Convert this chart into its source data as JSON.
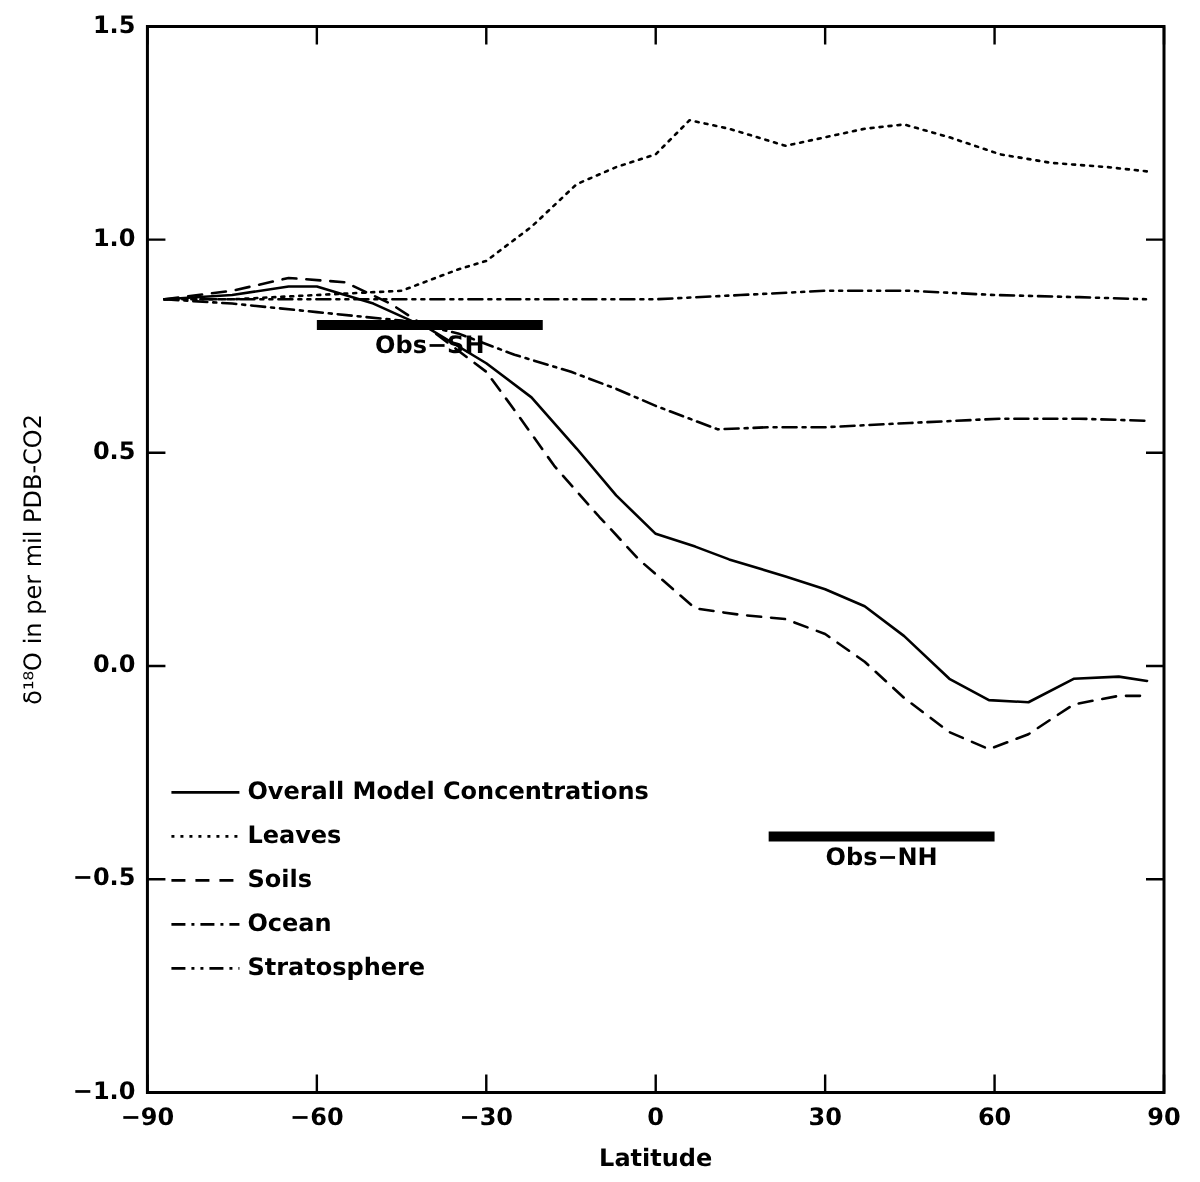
{
  "chart_data": {
    "type": "line",
    "xlabel": "Latitude",
    "ylabel": "δ¹⁸O in per mil PDB-CO2",
    "xlim": [
      -90,
      90
    ],
    "xticks": [
      {
        "value": -90,
        "label": "−90"
      },
      {
        "value": -60,
        "label": "−60"
      },
      {
        "value": -30,
        "label": "−30"
      },
      0,
      30,
      60,
      90
    ],
    "ylim": [
      -1.0,
      1.5
    ],
    "yticks": [
      {
        "value": -1,
        "label": "−1.0"
      },
      {
        "value": -0.5,
        "label": "−0.5"
      },
      {
        "value": 0,
        "label": "0.0"
      },
      {
        "value": 0.5,
        "label": "0.5"
      },
      {
        "value": 1,
        "label": "1.0"
      },
      {
        "value": 1.5,
        "label": "1.5"
      }
    ],
    "grid": false,
    "legend": "bottom left",
    "marker": "none",
    "series": [
      {
        "name": "Overall Model Concentrations",
        "color": "#000000",
        "line_style": "solid",
        "x": [
          -87,
          -75,
          -65,
          -60,
          -50,
          -40,
          -30,
          -22,
          -14,
          -7,
          0,
          7,
          13,
          23,
          30,
          37,
          44,
          52,
          59,
          66,
          74,
          82,
          87
        ],
        "values": [
          0.86,
          0.87,
          0.89,
          0.89,
          0.85,
          0.79,
          0.71,
          0.63,
          0.51,
          0.4,
          0.31,
          0.28,
          0.25,
          0.21,
          0.18,
          0.14,
          0.07,
          -0.03,
          -0.08,
          -0.085,
          -0.03,
          -0.025,
          -0.035
        ]
      },
      {
        "name": "Leaves",
        "color": "#000000",
        "line_style": "dotted",
        "x": [
          -87,
          -75,
          -60,
          -45,
          -35,
          -30,
          -22,
          -14,
          -7,
          0,
          6,
          13,
          23,
          30,
          37,
          44,
          52,
          61,
          70,
          80,
          87
        ],
        "values": [
          0.86,
          0.86,
          0.87,
          0.88,
          0.93,
          0.95,
          1.03,
          1.13,
          1.17,
          1.2,
          1.28,
          1.26,
          1.22,
          1.24,
          1.26,
          1.27,
          1.24,
          1.2,
          1.18,
          1.17,
          1.16
        ]
      },
      {
        "name": "Soils",
        "color": "#000000",
        "line_style": "dashed",
        "x": [
          -87,
          -75,
          -65,
          -55,
          -47,
          -40,
          -30,
          -25,
          -18,
          -10,
          -3,
          7,
          15,
          23,
          30,
          37,
          44,
          52,
          59,
          66,
          74,
          82,
          87
        ],
        "values": [
          0.86,
          0.88,
          0.91,
          0.9,
          0.85,
          0.79,
          0.69,
          0.6,
          0.47,
          0.35,
          0.25,
          0.135,
          0.12,
          0.11,
          0.075,
          0.01,
          -0.075,
          -0.155,
          -0.195,
          -0.16,
          -0.09,
          -0.07,
          -0.07
        ]
      },
      {
        "name": "Ocean",
        "color": "#000000",
        "line_style": "dashdot",
        "x": [
          -87,
          -75,
          -60,
          -45,
          -35,
          -25,
          -15,
          -7,
          0,
          11,
          20,
          30,
          45,
          61,
          75,
          87
        ],
        "values": [
          0.86,
          0.85,
          0.83,
          0.81,
          0.78,
          0.73,
          0.69,
          0.65,
          0.61,
          0.555,
          0.56,
          0.56,
          0.57,
          0.58,
          0.58,
          0.575
        ]
      },
      {
        "name": "Stratosphere",
        "color": "#000000",
        "line_style": "dashdotdot",
        "x": [
          -87,
          -60,
          -30,
          0,
          15,
          30,
          45,
          60,
          75,
          87
        ],
        "values": [
          0.86,
          0.86,
          0.86,
          0.86,
          0.87,
          0.88,
          0.88,
          0.87,
          0.865,
          0.86
        ]
      },
      {
        "color": "#000000",
        "line_style": "solid",
        "x": [
          -60,
          -20
        ],
        "values": [
          0.8,
          0.8
        ]
      },
      {
        "color": "#000000",
        "line_style": "solid",
        "x": [
          20,
          60
        ],
        "values": [
          -0.4,
          -0.4
        ]
      }
    ],
    "annotations": [
      {
        "text": "Obs−SH",
        "x": -40,
        "y": 0.8
      },
      {
        "text": "Obs−NH",
        "x": 40,
        "y": -0.4
      }
    ]
  }
}
